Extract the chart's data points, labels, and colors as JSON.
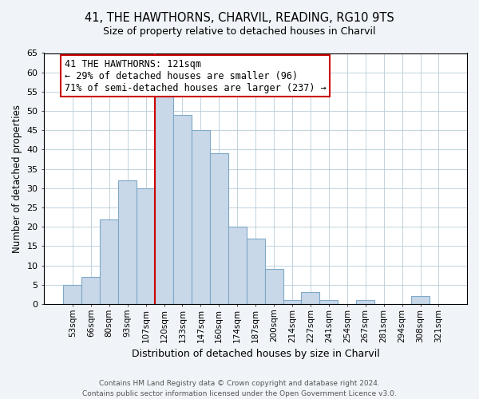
{
  "title": "41, THE HAWTHORNS, CHARVIL, READING, RG10 9TS",
  "subtitle": "Size of property relative to detached houses in Charvil",
  "xlabel": "Distribution of detached houses by size in Charvil",
  "ylabel": "Number of detached properties",
  "bar_color": "#c8d8e8",
  "bar_edgecolor": "#7fa8c8",
  "line_color": "#cc0000",
  "annotation_title": "41 THE HAWTHORNS: 121sqm",
  "annotation_line1": "← 29% of detached houses are smaller (96)",
  "annotation_line2": "71% of semi-detached houses are larger (237) →",
  "annotation_box_edgecolor": "#cc0000",
  "categories": [
    "53sqm",
    "66sqm",
    "80sqm",
    "93sqm",
    "107sqm",
    "120sqm",
    "133sqm",
    "147sqm",
    "160sqm",
    "174sqm",
    "187sqm",
    "200sqm",
    "214sqm",
    "227sqm",
    "241sqm",
    "254sqm",
    "267sqm",
    "281sqm",
    "294sqm",
    "308sqm",
    "321sqm"
  ],
  "values": [
    5,
    7,
    22,
    32,
    30,
    55,
    49,
    45,
    39,
    20,
    17,
    9,
    1,
    3,
    1,
    0,
    1,
    0,
    0,
    2,
    0
  ],
  "ylim": [
    0,
    65
  ],
  "yticks": [
    0,
    5,
    10,
    15,
    20,
    25,
    30,
    35,
    40,
    45,
    50,
    55,
    60,
    65
  ],
  "line_bar_index": 5,
  "footer1": "Contains HM Land Registry data © Crown copyright and database right 2024.",
  "footer2": "Contains public sector information licensed under the Open Government Licence v3.0.",
  "bg_color": "#f0f4f8",
  "plot_bg_color": "#ffffff"
}
